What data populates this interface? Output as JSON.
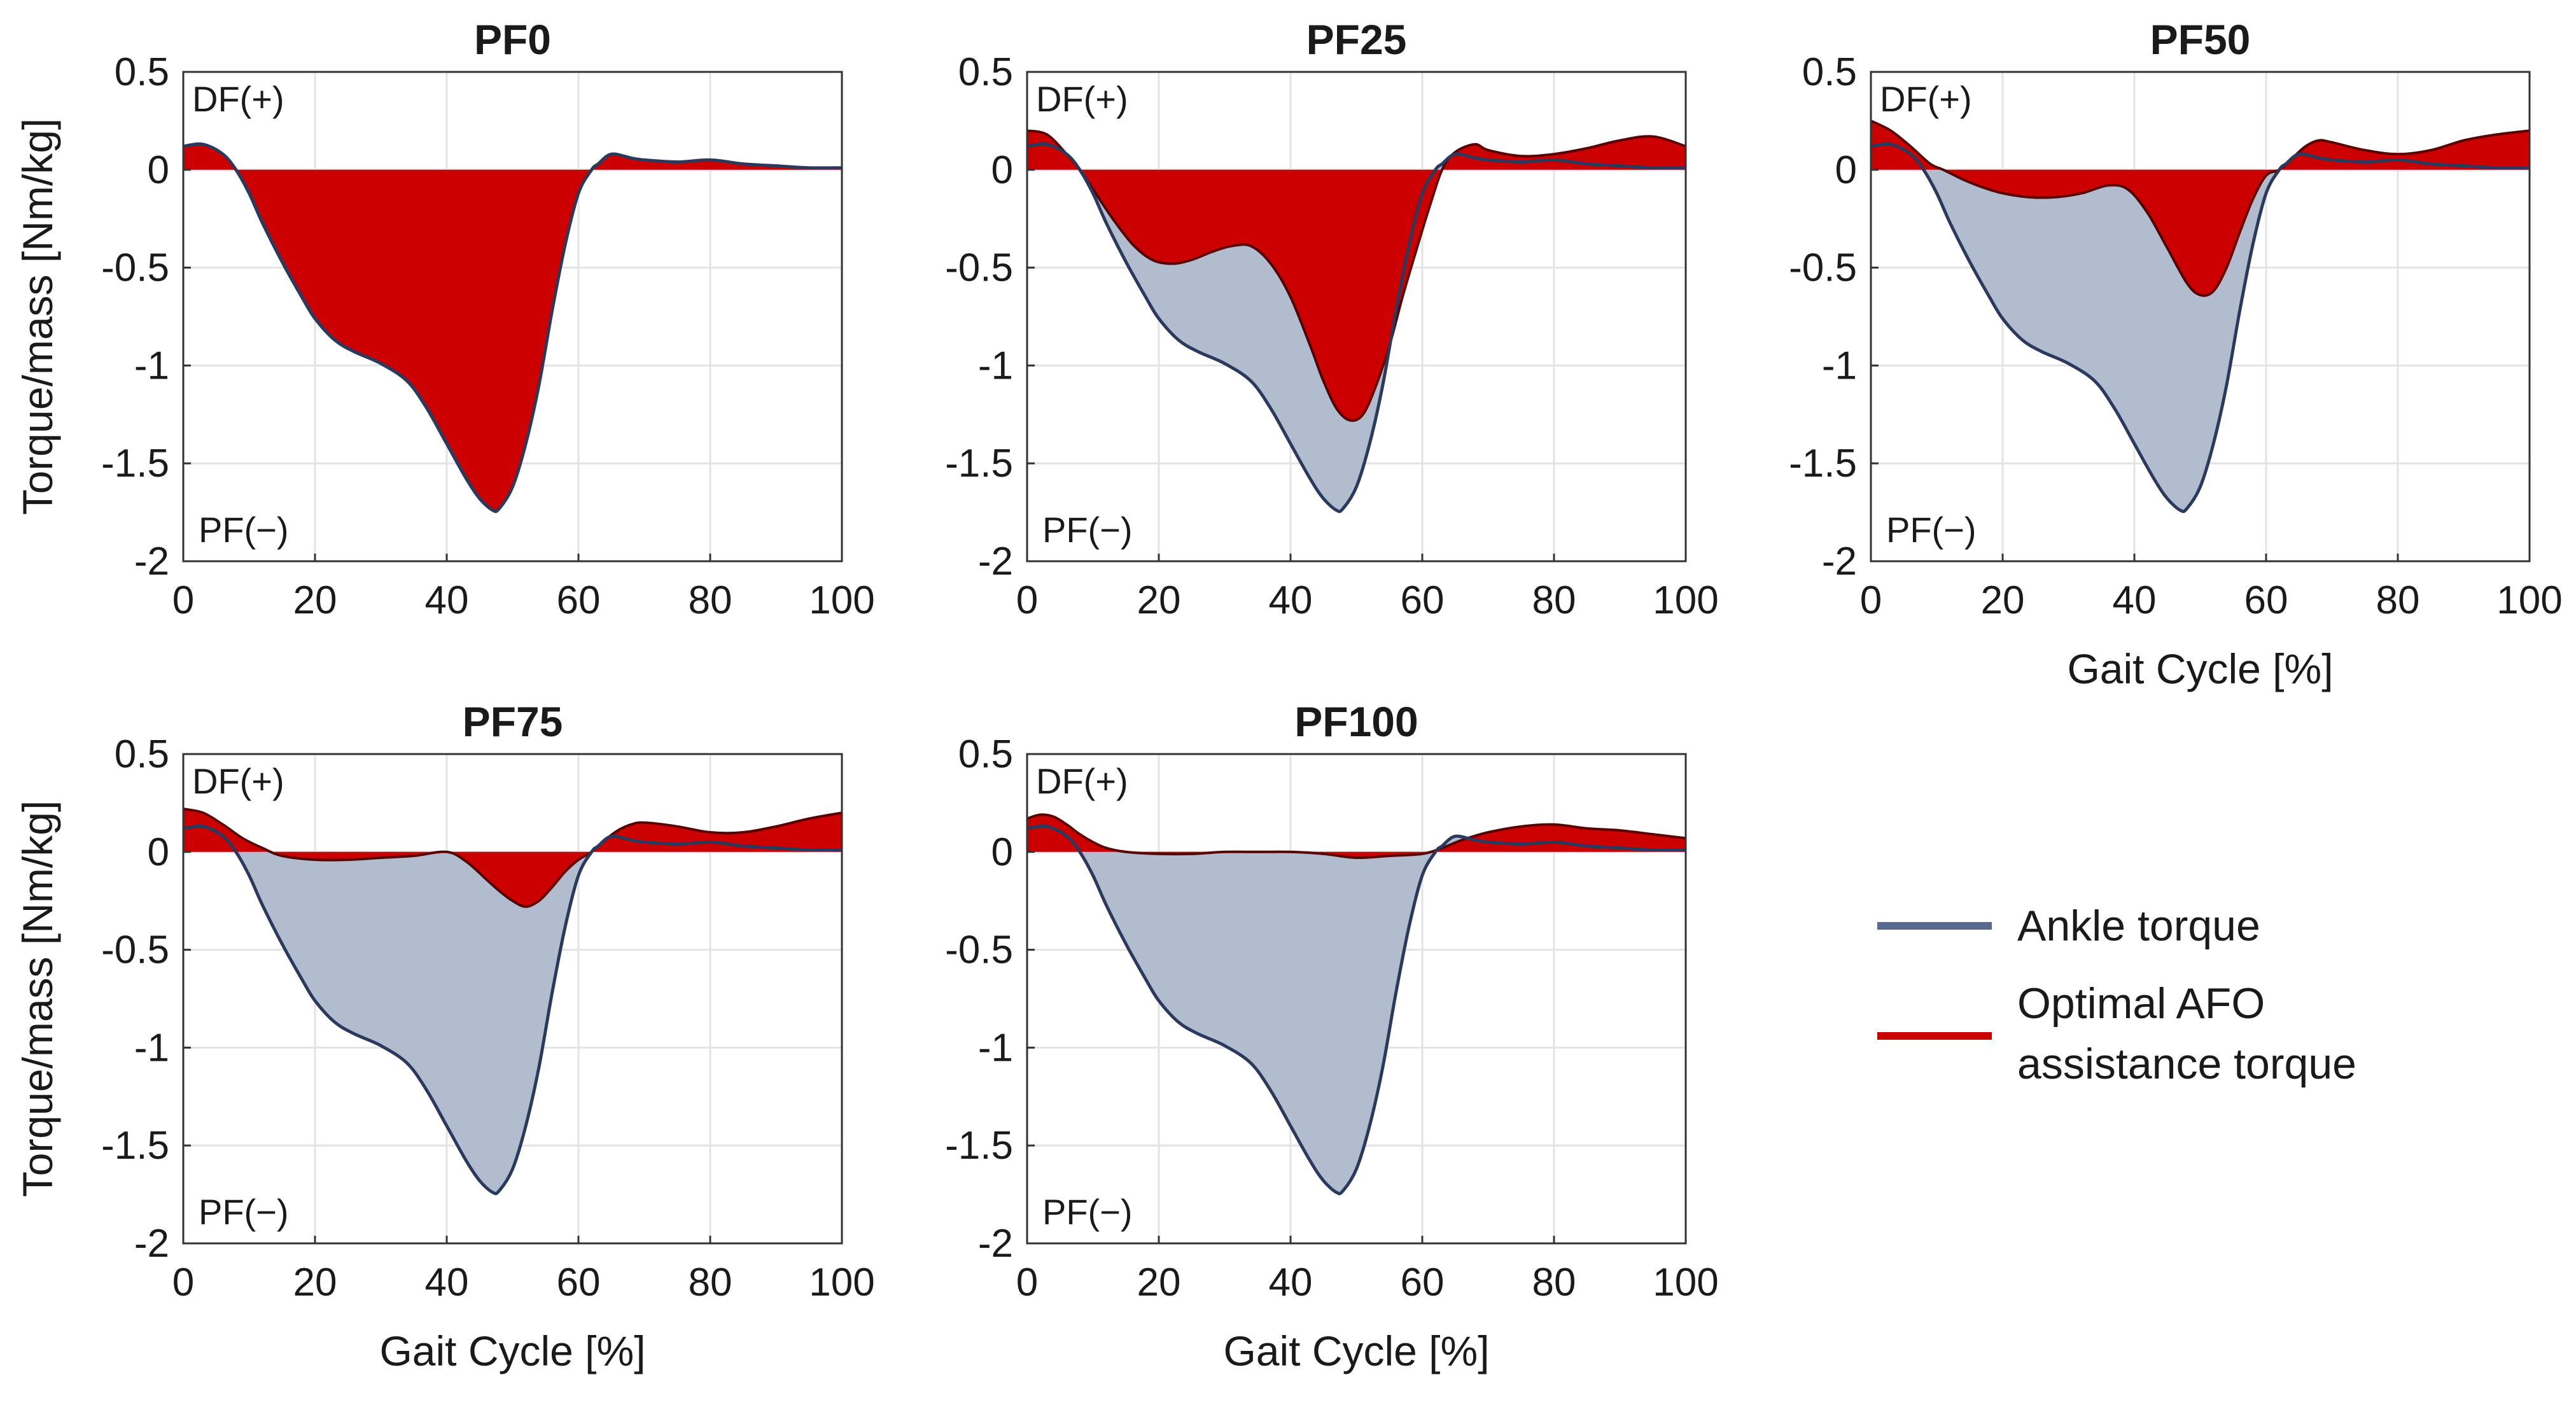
{
  "chart_data": {
    "type": "area",
    "grid": true,
    "xlim": [
      0,
      100
    ],
    "ylim": [
      -2,
      0.5
    ],
    "xticks": [
      "0",
      "20",
      "40",
      "60",
      "80",
      "100"
    ],
    "yticks": [
      "0.5",
      "0",
      "-0.5",
      "-1",
      "-1.5",
      "-2"
    ],
    "legend": {
      "placement": "right",
      "items": [
        {
          "label": "Ankle torque",
          "color": "#5a6a8e"
        },
        {
          "label": "Optimal AFO\nassistance torque",
          "color": "#c80000"
        }
      ]
    },
    "colors": {
      "ankle_line": "#2b3a5c",
      "ankle_fill": "#b2bccf",
      "afo_fill": "#cc0000",
      "afo_line": "#5a0000",
      "grid": "#e3e3e3"
    },
    "ankle_torque": {
      "x": [
        0,
        3,
        6,
        8,
        10,
        12,
        15,
        18,
        20,
        23,
        26,
        30,
        34,
        37,
        40,
        43,
        45,
        47,
        48,
        50,
        52,
        54,
        56,
        58,
        60,
        62,
        63,
        65,
        68,
        70,
        75,
        80,
        85,
        90,
        95,
        100
      ],
      "y": [
        0.12,
        0.13,
        0.08,
        0,
        -0.12,
        -0.27,
        -0.47,
        -0.65,
        -0.76,
        -0.87,
        -0.93,
        -0.99,
        -1.08,
        -1.22,
        -1.4,
        -1.58,
        -1.68,
        -1.74,
        -1.73,
        -1.62,
        -1.4,
        -1.1,
        -0.72,
        -0.38,
        -0.12,
        0,
        0.03,
        0.08,
        0.06,
        0.05,
        0.04,
        0.05,
        0.03,
        0.02,
        0.01,
        0.01
      ]
    },
    "panels": [
      {
        "title": "PF0",
        "xlabel": "",
        "ylabel": "Torque/mass [Nm/kg]",
        "label_top": "DF(+)",
        "label_bottom": "PF(−)",
        "afo_torque": {
          "x": [
            0,
            3,
            6,
            8,
            10,
            12,
            15,
            18,
            20,
            23,
            26,
            30,
            34,
            37,
            40,
            43,
            45,
            47,
            48,
            50,
            52,
            54,
            56,
            58,
            60,
            62,
            63,
            65,
            68,
            70,
            75,
            80,
            85,
            90,
            95,
            100
          ],
          "y": [
            0.12,
            0.13,
            0.08,
            0,
            -0.12,
            -0.27,
            -0.47,
            -0.65,
            -0.76,
            -0.87,
            -0.93,
            -0.99,
            -1.08,
            -1.22,
            -1.4,
            -1.58,
            -1.68,
            -1.74,
            -1.73,
            -1.62,
            -1.4,
            -1.1,
            -0.72,
            -0.38,
            -0.12,
            0,
            0.03,
            0.08,
            0.06,
            0.05,
            0.04,
            0.05,
            0.03,
            0.02,
            0.01,
            0.01
          ]
        }
      },
      {
        "title": "PF25",
        "xlabel": "",
        "ylabel": "",
        "label_top": "DF(+)",
        "label_bottom": "PF(−)",
        "afo_torque": {
          "x": [
            0,
            3,
            6,
            8,
            10,
            13,
            16,
            19,
            22,
            25,
            28,
            31,
            34,
            37,
            40,
            43,
            45,
            47,
            49,
            51,
            53,
            55,
            57,
            59,
            61,
            63,
            65,
            68,
            70,
            75,
            80,
            85,
            90,
            95,
            100
          ],
          "y": [
            0.2,
            0.18,
            0.08,
            0,
            -0.1,
            -0.25,
            -0.38,
            -0.46,
            -0.48,
            -0.46,
            -0.42,
            -0.39,
            -0.39,
            -0.48,
            -0.65,
            -0.9,
            -1.08,
            -1.22,
            -1.28,
            -1.25,
            -1.1,
            -0.9,
            -0.65,
            -0.42,
            -0.2,
            0,
            0.09,
            0.13,
            0.1,
            0.07,
            0.08,
            0.11,
            0.15,
            0.17,
            0.12
          ]
        }
      },
      {
        "title": "PF50",
        "xlabel": "Gait Cycle [%]",
        "ylabel": "",
        "label_top": "DF(+)",
        "label_bottom": "PF(−)",
        "afo_torque": {
          "x": [
            0,
            3,
            6,
            9,
            11,
            14,
            17,
            20,
            24,
            28,
            32,
            36,
            39,
            42,
            45,
            48,
            50,
            52,
            54,
            56,
            58,
            60,
            62,
            64,
            66,
            68,
            70,
            75,
            80,
            85,
            90,
            95,
            100
          ],
          "y": [
            0.25,
            0.2,
            0.12,
            0.03,
            0,
            -0.05,
            -0.09,
            -0.12,
            -0.14,
            -0.14,
            -0.12,
            -0.08,
            -0.1,
            -0.22,
            -0.4,
            -0.58,
            -0.64,
            -0.62,
            -0.5,
            -0.32,
            -0.15,
            -0.03,
            0,
            0.06,
            0.12,
            0.15,
            0.14,
            0.1,
            0.08,
            0.1,
            0.15,
            0.18,
            0.2
          ]
        }
      },
      {
        "title": "PF75",
        "xlabel": "Gait Cycle [%]",
        "ylabel": "Torque/mass [Nm/kg]",
        "label_top": "DF(+)",
        "label_bottom": "PF(−)",
        "afo_torque": {
          "x": [
            0,
            3,
            6,
            9,
            12,
            15,
            20,
            25,
            30,
            35,
            40,
            43,
            46,
            48,
            50,
            52,
            54,
            56,
            58,
            60,
            62,
            64,
            66,
            68,
            70,
            75,
            80,
            85,
            90,
            95,
            100
          ],
          "y": [
            0.22,
            0.2,
            0.14,
            0.07,
            0.02,
            -0.02,
            -0.04,
            -0.04,
            -0.03,
            -0.02,
            0,
            -0.05,
            -0.14,
            -0.2,
            -0.25,
            -0.28,
            -0.25,
            -0.18,
            -0.1,
            -0.04,
            0,
            0.06,
            0.11,
            0.14,
            0.15,
            0.13,
            0.1,
            0.1,
            0.13,
            0.17,
            0.2
          ]
        }
      },
      {
        "title": "PF100",
        "xlabel": "Gait Cycle [%]",
        "ylabel": "",
        "label_top": "DF(+)",
        "label_bottom": "PF(−)",
        "afo_torque": {
          "x": [
            0,
            2,
            4,
            6,
            8,
            10,
            12,
            15,
            20,
            25,
            30,
            35,
            40,
            45,
            50,
            55,
            60,
            63,
            66,
            70,
            75,
            80,
            85,
            90,
            95,
            100
          ],
          "y": [
            0.17,
            0.19,
            0.18,
            0.14,
            0.09,
            0.05,
            0.02,
            0,
            -0.01,
            -0.01,
            0,
            0,
            0,
            -0.01,
            -0.03,
            -0.02,
            -0.01,
            0.02,
            0.06,
            0.1,
            0.13,
            0.14,
            0.12,
            0.11,
            0.09,
            0.07
          ]
        }
      }
    ]
  }
}
